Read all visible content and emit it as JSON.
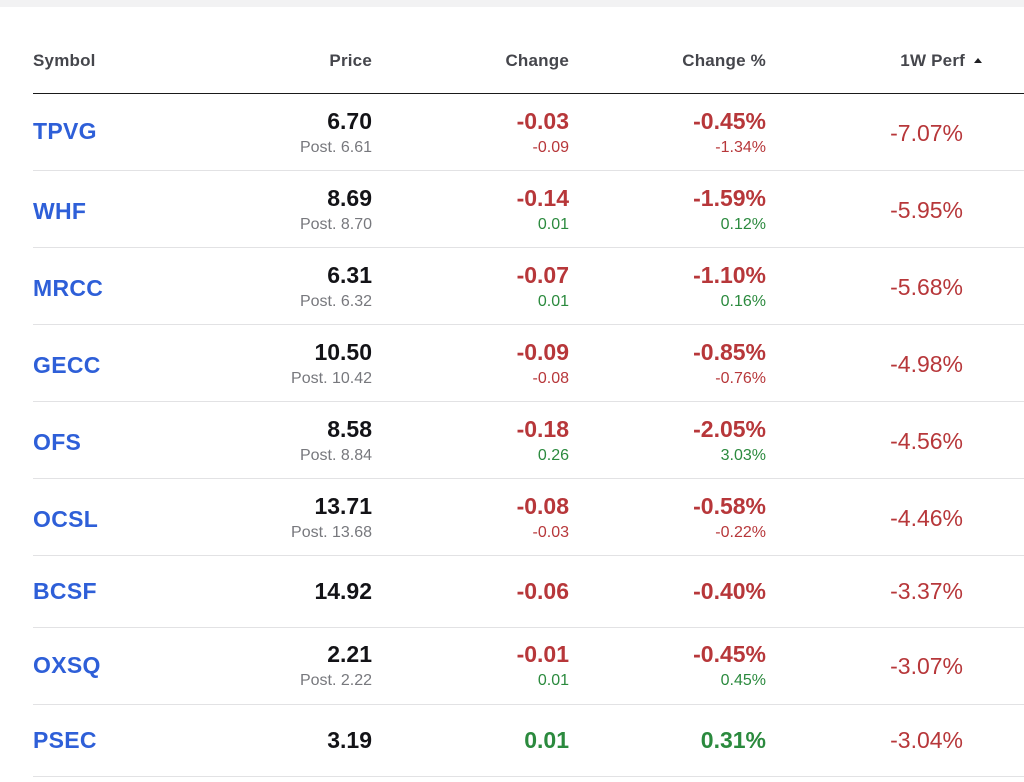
{
  "table": {
    "headers": {
      "symbol": "Symbol",
      "price": "Price",
      "change": "Change",
      "change_pct": "Change %",
      "perf_1w": "1W Perf"
    },
    "sort": {
      "column": "1W Perf",
      "direction": "ascending",
      "icon": "caret-up-icon"
    },
    "colors": {
      "link": "#2e5fd8",
      "negative": "#b7373a",
      "positive": "#2b8a3e",
      "muted": "#77787d"
    },
    "rows": [
      {
        "symbol": "TPVG",
        "price": "6.70",
        "post": "Post. 6.61",
        "change": "-0.03",
        "post_change": "-0.09",
        "change_pct": "-0.45%",
        "post_change_pct": "-1.34%",
        "perf_1w": "-7.07%"
      },
      {
        "symbol": "WHF",
        "price": "8.69",
        "post": "Post. 8.70",
        "change": "-0.14",
        "post_change": "0.01",
        "change_pct": "-1.59%",
        "post_change_pct": "0.12%",
        "perf_1w": "-5.95%"
      },
      {
        "symbol": "MRCC",
        "price": "6.31",
        "post": "Post. 6.32",
        "change": "-0.07",
        "post_change": "0.01",
        "change_pct": "-1.10%",
        "post_change_pct": "0.16%",
        "perf_1w": "-5.68%"
      },
      {
        "symbol": "GECC",
        "price": "10.50",
        "post": "Post. 10.42",
        "change": "-0.09",
        "post_change": "-0.08",
        "change_pct": "-0.85%",
        "post_change_pct": "-0.76%",
        "perf_1w": "-4.98%"
      },
      {
        "symbol": "OFS",
        "price": "8.58",
        "post": "Post. 8.84",
        "change": "-0.18",
        "post_change": "0.26",
        "change_pct": "-2.05%",
        "post_change_pct": "3.03%",
        "perf_1w": "-4.56%"
      },
      {
        "symbol": "OCSL",
        "price": "13.71",
        "post": "Post. 13.68",
        "change": "-0.08",
        "post_change": "-0.03",
        "change_pct": "-0.58%",
        "post_change_pct": "-0.22%",
        "perf_1w": "-4.46%"
      },
      {
        "symbol": "BCSF",
        "price": "14.92",
        "post": "",
        "change": "-0.06",
        "post_change": "",
        "change_pct": "-0.40%",
        "post_change_pct": "",
        "perf_1w": "-3.37%"
      },
      {
        "symbol": "OXSQ",
        "price": "2.21",
        "post": "Post. 2.22",
        "change": "-0.01",
        "post_change": "0.01",
        "change_pct": "-0.45%",
        "post_change_pct": "0.45%",
        "perf_1w": "-3.07%"
      },
      {
        "symbol": "PSEC",
        "price": "3.19",
        "post": "",
        "change": "0.01",
        "post_change": "",
        "change_pct": "0.31%",
        "post_change_pct": "",
        "perf_1w": "-3.04%"
      }
    ]
  }
}
